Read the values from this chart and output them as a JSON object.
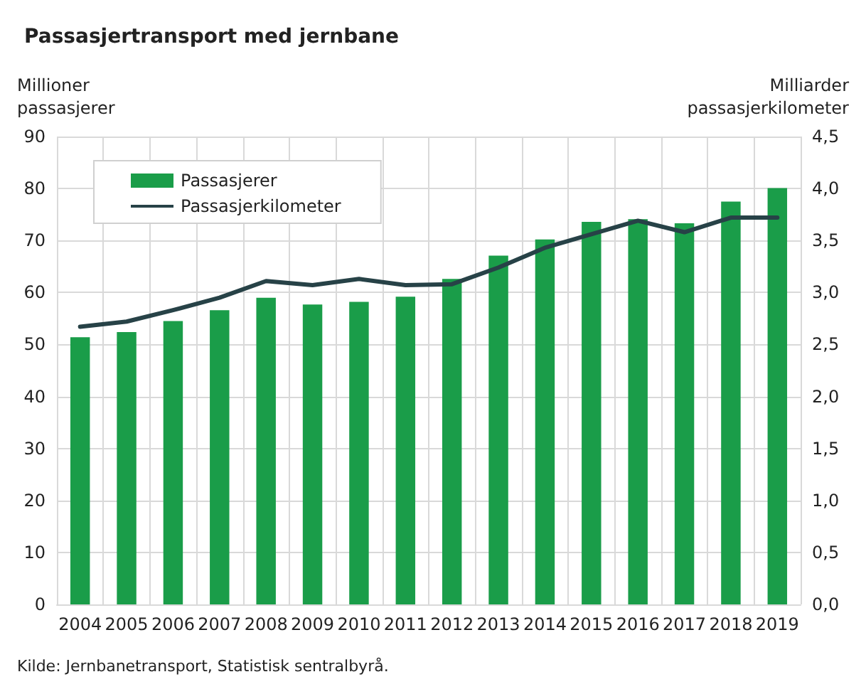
{
  "chart_data": {
    "type": "bar",
    "title": "Passasjertransport med jernbane",
    "ylabel": "Millioner\npassasjerer",
    "y2label": "Milliarder\npassasjerkilometer",
    "annotations": [
      "Kilde: Jernbanetransport, Statistisk sentralbyrå."
    ],
    "categories": [
      "2004",
      "2005",
      "2006",
      "2007",
      "2008",
      "2009",
      "2010",
      "2011",
      "2012",
      "2013",
      "2014",
      "2015",
      "2016",
      "2017",
      "2018",
      "2019"
    ],
    "series": [
      {
        "name": "Passasjerer",
        "color": "#1a9d49",
        "values": [
          51.4,
          52.4,
          54.5,
          56.6,
          59.0,
          57.7,
          58.2,
          59.2,
          62.6,
          67.1,
          70.2,
          73.6,
          74.1,
          73.3,
          77.5,
          80.1
        ]
      },
      {
        "name": "Passasjerkilometer",
        "type": "line",
        "axis": "y2",
        "color": "#274247",
        "values": [
          2.67,
          2.72,
          2.83,
          2.95,
          3.11,
          3.07,
          3.13,
          3.07,
          3.08,
          3.24,
          3.43,
          3.56,
          3.69,
          3.58,
          3.72,
          3.72
        ]
      }
    ],
    "ylim": [
      0,
      90
    ],
    "yticks": [
      0,
      10,
      20,
      30,
      40,
      50,
      60,
      70,
      80,
      90
    ],
    "y2lim": [
      0,
      4.5
    ],
    "y2ticks": [
      {
        "value": 0,
        "label": "0,0"
      },
      {
        "value": 0.5,
        "label": "0,5"
      },
      {
        "value": 1,
        "label": "1,0"
      },
      {
        "value": 1.5,
        "label": "1,5"
      },
      {
        "value": 2,
        "label": "2,0"
      },
      {
        "value": 2.5,
        "label": "2,5"
      },
      {
        "value": 3,
        "label": "3,0"
      },
      {
        "value": 3.5,
        "label": "3,5"
      },
      {
        "value": 4,
        "label": "4,0"
      },
      {
        "value": 4.5,
        "label": "4,5"
      }
    ],
    "grid": true,
    "legend": "top left",
    "marker": "none",
    "line_style": "solid"
  }
}
